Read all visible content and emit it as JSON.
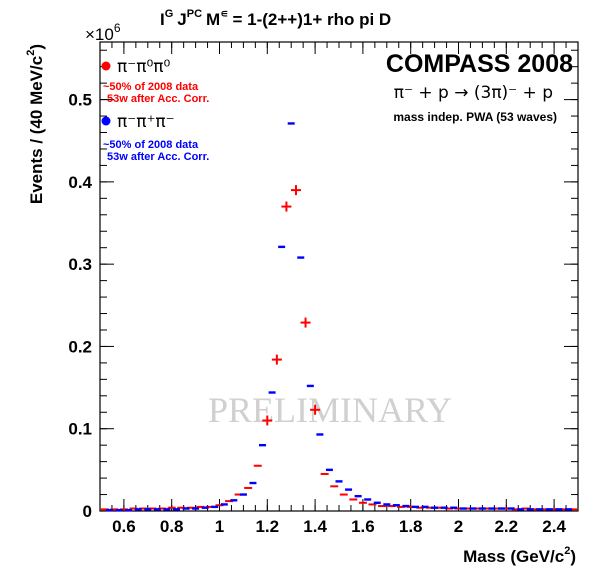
{
  "chart_data": {
    "type": "scatter",
    "title_parts": {
      "ig": "I",
      "g_sup": "G",
      "j": "J",
      "pc_sup": "PC",
      "m": "M",
      "eps_sup": "∊",
      "rest": "= 1-(2++)1+ rho pi D"
    },
    "xlabel": "Mass (GeV/c",
    "xlabel_sup": "2",
    "xlabel_end": ")",
    "ylabel": "Events / (40 MeV/c",
    "ylabel_sup": "2",
    "ylabel_end": ")",
    "y_exponent_base": "×10",
    "y_exponent_power": "6",
    "xlim": [
      0.5,
      2.5
    ],
    "ylim": [
      0,
      0.57
    ],
    "x_ticks": [
      0.6,
      0.8,
      1,
      1.2,
      1.4,
      1.6,
      1.8,
      2,
      2.2,
      2.4
    ],
    "x_tick_labels": [
      "0.6",
      "0.8",
      "1",
      "1.2",
      "1.4",
      "1.6",
      "1.8",
      "2",
      "2.2",
      "2.4"
    ],
    "y_ticks": [
      0,
      0.1,
      0.2,
      0.3,
      0.4,
      0.5
    ],
    "y_tick_labels": [
      "0",
      "0.1",
      "0.2",
      "0.3",
      "0.4",
      "0.5"
    ],
    "series": [
      {
        "name": "π⁻π⁰π⁰",
        "color": "#ff0000",
        "marker": "cross",
        "x": [
          0.52,
          0.56,
          0.6,
          0.64,
          0.68,
          0.72,
          0.76,
          0.8,
          0.84,
          0.88,
          0.92,
          0.96,
          1.0,
          1.04,
          1.08,
          1.12,
          1.16,
          1.2,
          1.24,
          1.28,
          1.32,
          1.36,
          1.4,
          1.44,
          1.48,
          1.52,
          1.56,
          1.6,
          1.64,
          1.68,
          1.72,
          1.76,
          1.8,
          1.84,
          1.88,
          1.92,
          1.96,
          2.0,
          2.04,
          2.08,
          2.12,
          2.16,
          2.2,
          2.24,
          2.28,
          2.32,
          2.36,
          2.4,
          2.44,
          2.48
        ],
        "y": [
          0.002,
          0.002,
          0.002,
          0.003,
          0.003,
          0.003,
          0.003,
          0.004,
          0.004,
          0.004,
          0.005,
          0.005,
          0.007,
          0.012,
          0.02,
          0.028,
          0.055,
          0.11,
          0.184,
          0.37,
          0.39,
          0.229,
          0.123,
          0.045,
          0.03,
          0.02,
          0.014,
          0.01,
          0.008,
          0.006,
          0.006,
          0.005,
          0.005,
          0.004,
          0.004,
          0.004,
          0.003,
          0.003,
          0.003,
          0.003,
          0.003,
          0.003,
          0.003,
          0.002,
          0.003,
          0.002,
          0.002,
          0.002,
          0.002,
          0.002
        ]
      },
      {
        "name": "π⁻π⁺π⁻",
        "color": "#0000ff",
        "marker": "dot",
        "x": [
          0.54,
          0.58,
          0.62,
          0.66,
          0.7,
          0.74,
          0.78,
          0.82,
          0.86,
          0.9,
          0.94,
          0.98,
          1.02,
          1.06,
          1.1,
          1.14,
          1.18,
          1.22,
          1.26,
          1.3,
          1.34,
          1.38,
          1.42,
          1.46,
          1.5,
          1.54,
          1.58,
          1.62,
          1.66,
          1.7,
          1.74,
          1.78,
          1.82,
          1.86,
          1.9,
          1.94,
          1.98,
          2.02,
          2.06,
          2.1,
          2.14,
          2.18,
          2.22,
          2.26,
          2.3,
          2.34,
          2.38,
          2.42,
          2.46
        ],
        "y": [
          0.001,
          0.001,
          0.001,
          0.002,
          0.002,
          0.002,
          0.002,
          0.002,
          0.003,
          0.003,
          0.004,
          0.005,
          0.008,
          0.013,
          0.02,
          0.034,
          0.08,
          0.144,
          0.321,
          0.471,
          0.308,
          0.152,
          0.093,
          0.05,
          0.036,
          0.026,
          0.018,
          0.014,
          0.01,
          0.008,
          0.007,
          0.006,
          0.005,
          0.005,
          0.004,
          0.004,
          0.004,
          0.003,
          0.003,
          0.003,
          0.003,
          0.003,
          0.003,
          0.002,
          0.002,
          0.002,
          0.002,
          0.002,
          0.002
        ]
      }
    ],
    "legend": [
      {
        "series": 0,
        "line1": "~50% of 2008 data",
        "line2": "53w after Acc. Corr."
      },
      {
        "series": 1,
        "line1": "~50% of 2008 data",
        "line2": "53w after Acc. Corr."
      }
    ],
    "annotations": {
      "experiment": "COMPASS 2008",
      "reaction": "π⁻ + p  →  (3π)⁻ + p",
      "method": "mass indep. PWA (53 waves)",
      "watermark": "PRELIMINARY"
    },
    "grid": false,
    "legend_position": "top-left"
  }
}
